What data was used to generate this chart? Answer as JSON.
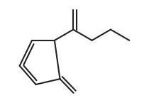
{
  "background_color": "#ffffff",
  "line_color": "#222222",
  "line_width": 1.5,
  "dbo": 0.012,
  "figsize": [
    2.1,
    1.45
  ],
  "dpi": 100
}
